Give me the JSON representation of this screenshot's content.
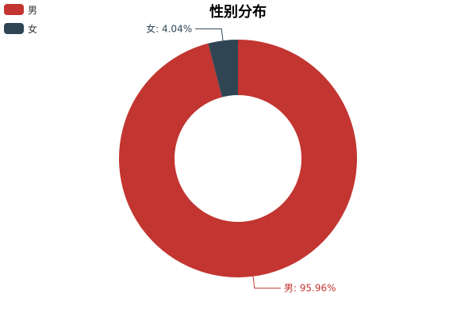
{
  "chart_data": {
    "type": "pie",
    "variant": "donut",
    "title": "性别分布",
    "legend_position": "top-left",
    "slices": [
      {
        "name": "男",
        "value": 95.96,
        "label": "男: 95.96%",
        "color": "#c23531"
      },
      {
        "name": "女",
        "value": 4.04,
        "label": "女: 4.04%",
        "color": "#2f4554"
      }
    ]
  }
}
